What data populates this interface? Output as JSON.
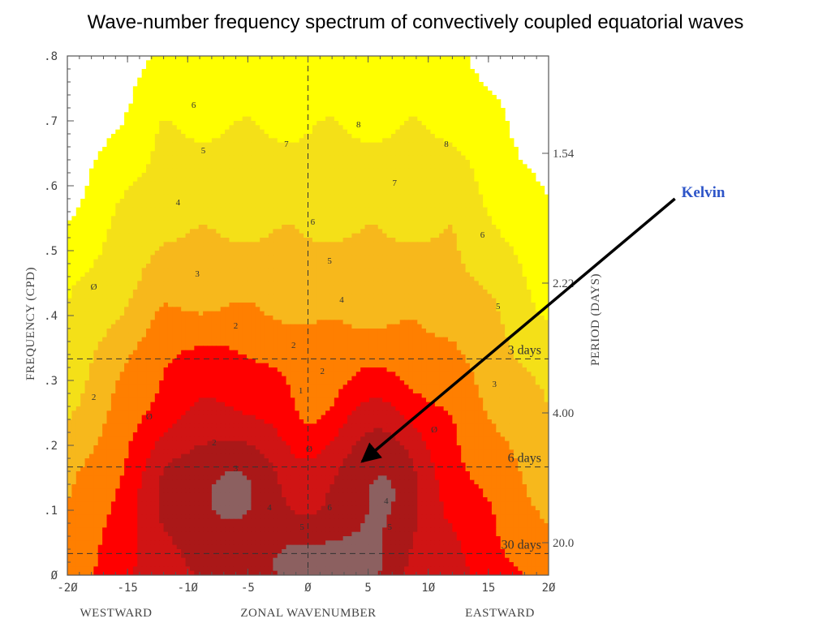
{
  "slide": {
    "title": "Wave-number frequency spectrum of convectively coupled equatorial waves"
  },
  "chart_data": {
    "type": "heatmap",
    "title": "Wave-number frequency spectrum of convectively coupled equatorial waves",
    "xlabel": "ZONAL WAVENUMBER",
    "ylabel": "FREQUENCY (CPD)",
    "y2label": "PERIOD (DAYS)",
    "x_side_labels": {
      "left": "WESTWARD",
      "right": "EASTWARD"
    },
    "xlim": [
      -20,
      20
    ],
    "ylim": [
      0,
      0.8
    ],
    "x_ticks": [
      -20,
      -15,
      -10,
      -5,
      0,
      5,
      10,
      15,
      20
    ],
    "x_tick_labels": [
      "-2Ø",
      "-15",
      "-1Ø",
      "-5",
      "Ø",
      "5",
      "1Ø",
      "15",
      "2Ø"
    ],
    "y_ticks": [
      0,
      0.1,
      0.2,
      0.3,
      0.4,
      0.5,
      0.6,
      0.7,
      0.8
    ],
    "y_tick_labels": [
      "Ø",
      ".1",
      ".2",
      ".3",
      ".4",
      ".5",
      ".6",
      ".7",
      ".8"
    ],
    "period_ticks": [
      {
        "freq": 0.65,
        "label": "1.54"
      },
      {
        "freq": 0.45,
        "label": "2.22"
      },
      {
        "freq": 0.25,
        "label": "4.00"
      },
      {
        "freq": 0.05,
        "label": "20.0"
      }
    ],
    "reference_lines": [
      {
        "freq": 0.3333,
        "label": "3 days"
      },
      {
        "freq": 0.1667,
        "label": "6 days"
      },
      {
        "freq": 0.0333,
        "label": "30 days"
      }
    ],
    "levels": [
      {
        "value": 0.8,
        "color": "#ffffff"
      },
      {
        "value": 0.6,
        "color": "#ffff00"
      },
      {
        "value": 0.4,
        "color": "#f4e018"
      },
      {
        "value": 0.2,
        "color": "#f7b81c"
      },
      {
        "value": 0.0,
        "color": "#ff7f00"
      },
      {
        "value": -0.2,
        "color": "#ff0000"
      },
      {
        "value": -0.4,
        "color": "#d01414"
      },
      {
        "value": -0.6,
        "color": "#aa1818"
      },
      {
        "value": -0.8,
        "color": "#8c6060"
      },
      {
        "value": -1.0,
        "color": "#a89090"
      }
    ],
    "contour_labels": [
      {
        "x": -9.5,
        "y": 0.72,
        "text": "6"
      },
      {
        "x": -8.7,
        "y": 0.65,
        "text": "5"
      },
      {
        "x": 4.2,
        "y": 0.69,
        "text": "8"
      },
      {
        "x": -1.8,
        "y": 0.66,
        "text": "7"
      },
      {
        "x": 11.5,
        "y": 0.66,
        "text": "8"
      },
      {
        "x": 7.2,
        "y": 0.6,
        "text": "7"
      },
      {
        "x": -10.8,
        "y": 0.57,
        "text": "4"
      },
      {
        "x": 0.4,
        "y": 0.54,
        "text": "6"
      },
      {
        "x": 14.5,
        "y": 0.52,
        "text": "6"
      },
      {
        "x": -9.2,
        "y": 0.46,
        "text": "3"
      },
      {
        "x": 1.8,
        "y": 0.48,
        "text": "5"
      },
      {
        "x": 2.8,
        "y": 0.42,
        "text": "4"
      },
      {
        "x": -17.8,
        "y": 0.44,
        "text": "Ø"
      },
      {
        "x": -6.0,
        "y": 0.38,
        "text": "2"
      },
      {
        "x": 15.8,
        "y": 0.41,
        "text": "5"
      },
      {
        "x": -17.8,
        "y": 0.27,
        "text": "2"
      },
      {
        "x": -13.2,
        "y": 0.24,
        "text": "Ø"
      },
      {
        "x": -7.8,
        "y": 0.2,
        "text": "2"
      },
      {
        "x": -6.0,
        "y": 0.16,
        "text": "3"
      },
      {
        "x": -0.6,
        "y": 0.28,
        "text": "1"
      },
      {
        "x": -1.2,
        "y": 0.35,
        "text": "2"
      },
      {
        "x": 1.2,
        "y": 0.31,
        "text": "2"
      },
      {
        "x": 0.1,
        "y": 0.19,
        "text": "Ø"
      },
      {
        "x": 10.5,
        "y": 0.22,
        "text": "Ø"
      },
      {
        "x": 15.5,
        "y": 0.29,
        "text": "3"
      },
      {
        "x": -3.2,
        "y": 0.1,
        "text": "4"
      },
      {
        "x": -0.5,
        "y": 0.07,
        "text": "5"
      },
      {
        "x": 1.8,
        "y": 0.1,
        "text": "6"
      },
      {
        "x": 6.5,
        "y": 0.11,
        "text": "4"
      },
      {
        "x": 6.8,
        "y": 0.07,
        "text": "5"
      }
    ]
  },
  "annotations": {
    "kelvin": {
      "label": "Kelvin",
      "arrow_from": {
        "x": 30.5,
        "y": 0.58
      },
      "arrow_to": {
        "x": 4.5,
        "y": 0.175
      }
    }
  },
  "colors": {
    "axis": "#555555",
    "arrow": "#000000",
    "kelvin_label": "#2e55c8"
  }
}
